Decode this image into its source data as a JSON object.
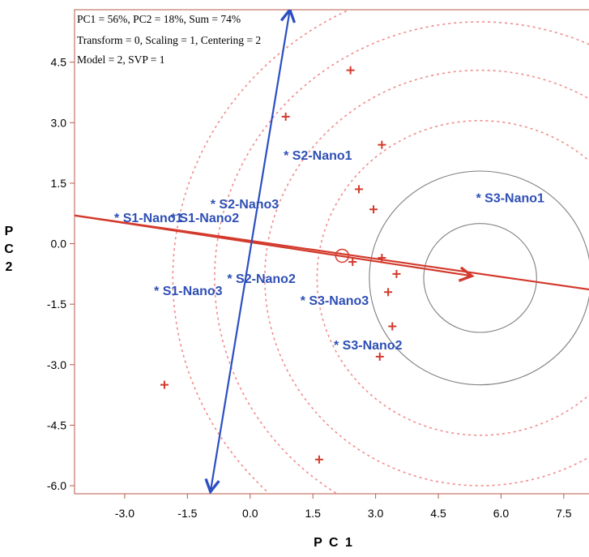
{
  "chart_data": {
    "type": "scatter",
    "title": "",
    "xlabel": "P C 1",
    "ylabel_lines": [
      "P",
      "C",
      "2"
    ],
    "xlim": [
      -4.2,
      8.2
    ],
    "ylim": [
      -6.2,
      5.8
    ],
    "x_ticks": [
      -3.0,
      -1.5,
      0.0,
      1.5,
      3.0,
      4.5,
      6.0,
      7.5
    ],
    "x_tick_labels": [
      "-3.0",
      "-1.5",
      "0.0",
      "1.5",
      "3.0",
      "4.5",
      "6.0",
      "7.5"
    ],
    "y_ticks": [
      4.5,
      3.0,
      1.5,
      0.0,
      -1.5,
      -3.0,
      -4.5,
      -6.0
    ],
    "y_tick_labels": [
      "4.5",
      "3.0",
      "1.5",
      "0.0",
      "-1.5",
      "-3.0",
      "-4.5",
      "-6.0"
    ],
    "info_lines": [
      "PC1 = 56%, PC2 = 18%, Sum = 74%",
      "Transform = 0, Scaling = 1, Centering = 2",
      "Model = 2, SVP = 1"
    ],
    "labeled_points": [
      {
        "label": "* S1-Nano1",
        "x": -3.25,
        "y": 0.65
      },
      {
        "label": "* S1-Nano2",
        "x": -1.9,
        "y": 0.65
      },
      {
        "label": "* S1-Nano3",
        "x": -2.3,
        "y": -1.15
      },
      {
        "label": "* S2-Nano1",
        "x": 0.8,
        "y": 2.2
      },
      {
        "label": "* S2-Nano2",
        "x": -0.55,
        "y": -0.85
      },
      {
        "label": "* S2-Nano3",
        "x": -0.95,
        "y": 1.0
      },
      {
        "label": "* S3-Nano1",
        "x": 5.4,
        "y": 1.15
      },
      {
        "label": "* S3-Nano2",
        "x": 2.0,
        "y": -2.5
      },
      {
        "label": "* S3-Nano3",
        "x": 1.2,
        "y": -1.4
      }
    ],
    "plus_points": [
      {
        "x": 2.4,
        "y": 4.3
      },
      {
        "x": 0.85,
        "y": 3.15
      },
      {
        "x": 3.15,
        "y": 2.45
      },
      {
        "x": 2.6,
        "y": 1.35
      },
      {
        "x": 2.95,
        "y": 0.85
      },
      {
        "x": 2.45,
        "y": -0.45
      },
      {
        "x": 3.15,
        "y": -0.35
      },
      {
        "x": 3.5,
        "y": -0.75
      },
      {
        "x": 3.3,
        "y": -1.2
      },
      {
        "x": 3.4,
        "y": -2.05
      },
      {
        "x": 3.1,
        "y": -2.8
      },
      {
        "x": -2.05,
        "y": -3.5
      },
      {
        "x": 1.65,
        "y": -5.35
      }
    ],
    "center_marker": {
      "x": 2.2,
      "y": -0.3
    },
    "pc1_arrow": {
      "from": [
        -4.2,
        0.7
      ],
      "to": [
        5.3,
        -0.8
      ],
      "continues_to": [
        8.2,
        -1.15
      ]
    },
    "pc2_arrow": {
      "from": [
        0.95,
        5.8
      ],
      "to": [
        -0.95,
        -6.15
      ]
    },
    "solid_circles": {
      "center": [
        5.5,
        -0.85
      ],
      "radii": [
        1.35,
        2.65
      ]
    },
    "dashed_circles": {
      "center": [
        5.5,
        -0.85
      ],
      "radii": [
        3.9,
        5.15,
        6.35,
        7.35
      ]
    },
    "colors": {
      "label_blue": "#2e4fb5",
      "arrow_blue": "#2b4fc1",
      "red": "#d33a2c",
      "dashed_red": "#f08c8c",
      "gray_circle": "#7f7f7f",
      "axis": "#b85a4a"
    }
  }
}
